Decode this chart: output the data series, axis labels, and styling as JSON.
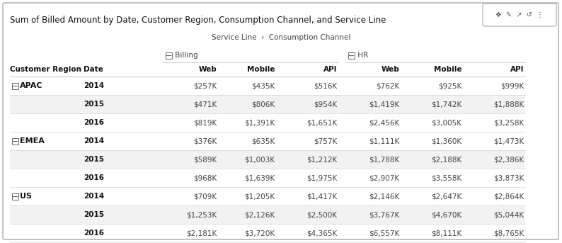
{
  "title": "Sum of Billed Amount by Date, Customer Region, Consumption Channel, and Service Line",
  "breadcrumb": "Service Line  ›  Consumption Channel",
  "col_headers": [
    "Customer Region",
    "Date",
    "Web",
    "Mobile",
    "API",
    "Web",
    "Mobile",
    "API"
  ],
  "rows": [
    [
      "⊡ APAC",
      "2014",
      "$257K",
      "$435K",
      "$516K",
      "$762K",
      "$925K",
      "$999K"
    ],
    [
      "",
      "2015",
      "$471K",
      "$806K",
      "$954K",
      "$1,419K",
      "$1,742K",
      "$1,888K"
    ],
    [
      "",
      "2016",
      "$819K",
      "$1,391K",
      "$1,651K",
      "$2,456K",
      "$3,005K",
      "$3,258K"
    ],
    [
      "⊡ EMEA",
      "2014",
      "$376K",
      "$635K",
      "$757K",
      "$1,111K",
      "$1,360K",
      "$1,473K"
    ],
    [
      "",
      "2015",
      "$589K",
      "$1,003K",
      "$1,212K",
      "$1,788K",
      "$2,188K",
      "$2,386K"
    ],
    [
      "",
      "2016",
      "$968K",
      "$1,639K",
      "$1,975K",
      "$2,907K",
      "$3,558K",
      "$3,873K"
    ],
    [
      "⊡ US",
      "2014",
      "$709K",
      "$1,205K",
      "$1,417K",
      "$2,146K",
      "$2,647K",
      "$2,864K"
    ],
    [
      "",
      "2015",
      "$1,253K",
      "$2,126K",
      "$2,500K",
      "$3,767K",
      "$4,670K",
      "$5,044K"
    ],
    [
      "",
      "2016",
      "$2,181K",
      "$3,720K",
      "$4,365K",
      "$6,557K",
      "$8,111K",
      "$8,765K"
    ]
  ],
  "shaded_rows": [
    1,
    4,
    7
  ],
  "bg_color": "#ffffff",
  "shaded_color": "#f2f2f2",
  "border_color": "#cccccc",
  "text_color": "#444444",
  "bold_color": "#111111",
  "fig_width": 7.94,
  "fig_height": 3.43,
  "dpi": 100
}
